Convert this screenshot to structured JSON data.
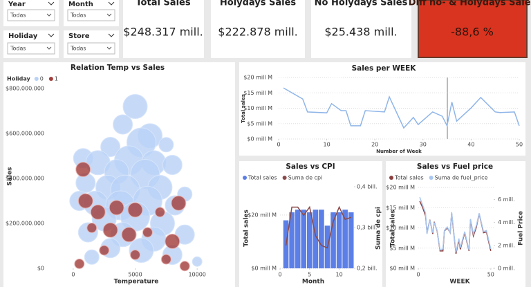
{
  "slicers": [
    {
      "label": "Year",
      "value": "Todas"
    },
    {
      "label": "Month",
      "value": "Todas"
    },
    {
      "label": "Holiday",
      "value": "Todas"
    },
    {
      "label": "Store",
      "value": "Todas"
    }
  ],
  "cards": [
    {
      "title": "Total Sales",
      "value": "$248.317 mill."
    },
    {
      "title": "Holydays Sales",
      "value": "$222.878 mill."
    },
    {
      "title": "No Holydays Sales",
      "value": "$25.438 mill."
    },
    {
      "title": "Diff no- & Holydays Sales",
      "value": "-88,6 %"
    }
  ],
  "chart_data": [
    {
      "type": "scatter",
      "title": "Relation Temp vs Sales",
      "legend_title": "Holiday",
      "x_label": "Temperature",
      "y_label": "Sales",
      "grid": false,
      "xlim": [
        -2000,
        12500
      ],
      "xticks": [
        0,
        5000,
        10000
      ],
      "ylim": [
        0,
        800000000
      ],
      "yticks": [
        {
          "value": 0,
          "label": "$0"
        },
        {
          "value": 200000000,
          "label": "$200.000.000"
        },
        {
          "value": 400000000,
          "label": "$400.000.000"
        },
        {
          "value": 600000000,
          "label": "$600.000.000"
        },
        {
          "value": 800000000,
          "label": "$800.000.000"
        }
      ],
      "series": [
        {
          "name": "0",
          "color": "#b9d2f6",
          "x": [
            5000,
            4000,
            6200,
            5500,
            3000,
            7500,
            800,
            2000,
            4500,
            6500,
            8000,
            3500,
            5800,
            1000,
            2800,
            4200,
            7000,
            9000,
            500,
            1800,
            3800,
            6000,
            8200,
            2500,
            5000,
            7200,
            1200,
            4000,
            6500,
            9000,
            3000,
            5500,
            8000,
            10000,
            1500
          ],
          "values": [
            720000000,
            640000000,
            590000000,
            560000000,
            540000000,
            550000000,
            490000000,
            470000000,
            480000000,
            470000000,
            460000000,
            430000000,
            420000000,
            380000000,
            360000000,
            350000000,
            360000000,
            330000000,
            300000000,
            290000000,
            280000000,
            300000000,
            280000000,
            220000000,
            230000000,
            200000000,
            160000000,
            150000000,
            130000000,
            150000000,
            90000000,
            80000000,
            60000000,
            30000000,
            50000000
          ],
          "sizes": [
            5,
            4,
            5,
            6,
            4,
            3,
            4,
            5,
            6,
            5,
            4,
            5,
            6,
            4,
            5,
            6,
            5,
            3,
            4,
            5,
            6,
            6,
            4,
            5,
            6,
            5,
            4,
            5,
            5,
            4,
            4,
            5,
            4,
            2,
            3
          ]
        },
        {
          "name": "1",
          "color": "#a23f3d",
          "x": [
            800,
            1000,
            2000,
            3500,
            5000,
            7000,
            8500,
            1500,
            3000,
            4500,
            6000,
            8000,
            2500,
            5000,
            7500,
            500,
            9000
          ],
          "values": [
            440000000,
            300000000,
            250000000,
            270000000,
            260000000,
            250000000,
            290000000,
            180000000,
            170000000,
            150000000,
            160000000,
            120000000,
            80000000,
            60000000,
            40000000,
            20000000,
            10000000
          ],
          "sizes": [
            3,
            3,
            3,
            3,
            3,
            2,
            3,
            2,
            3,
            3,
            2,
            3,
            2,
            2,
            2,
            2,
            2
          ]
        }
      ]
    },
    {
      "type": "line",
      "title": "Sales per WEEK",
      "x_label": "Number of Week",
      "y_label": "Total sales",
      "grid": true,
      "xlim": [
        0,
        50
      ],
      "xticks": [
        0,
        10,
        20,
        30,
        40,
        50
      ],
      "ylim": [
        0,
        20
      ],
      "yticks": [
        {
          "value": 0,
          "label": "$0 mill M"
        },
        {
          "value": 5,
          "label": "$5 mill M"
        },
        {
          "value": 10,
          "label": "$10 mill M"
        },
        {
          "value": 15,
          "label": "$15 mill M"
        },
        {
          "value": 20,
          "label": "$20 mill M"
        }
      ],
      "x": [
        1,
        5,
        6,
        10,
        11,
        13,
        14,
        15,
        17,
        18,
        22,
        23,
        26,
        28,
        29,
        32,
        34,
        35,
        36,
        37,
        40,
        42,
        45,
        46,
        49,
        50
      ],
      "series": [
        {
          "name": "Total sales",
          "color": "#8fb5e8",
          "values": [
            16.6,
            13,
            8.8,
            8.5,
            11.5,
            9.2,
            9.2,
            4.3,
            4.3,
            9.2,
            8.8,
            13.7,
            3.6,
            7,
            4.7,
            8.8,
            7.4,
            4.3,
            12,
            5.8,
            10.1,
            13.5,
            8.8,
            8.6,
            8.8,
            4.3
          ]
        }
      ]
    },
    {
      "type": "bar",
      "title": "Sales vs CPI",
      "x_label": "Month",
      "y_label": "Total sales",
      "y2_label": "Suma de cpi",
      "grid": true,
      "xlim": [
        0,
        12.5
      ],
      "xticks": [
        0,
        5,
        10
      ],
      "ylim": [
        0,
        30.6
      ],
      "yticks": [
        {
          "value": 0,
          "label": "$0 mill M"
        },
        {
          "value": 20,
          "label": "$20 mill M"
        }
      ],
      "y2lim": [
        0.2,
        0.4
      ],
      "y2ticks": [
        {
          "value": 0.2,
          "label": "0,2 bill."
        },
        {
          "value": 0.3,
          "label": "0,3 bill."
        },
        {
          "value": 0.4,
          "label": "0,4 bill."
        }
      ],
      "x": [
        1,
        2,
        3,
        4,
        5,
        6,
        7,
        8,
        9,
        10,
        11,
        12
      ],
      "series": [
        {
          "name": "Total sales",
          "color": "#5b7fe6",
          "values": [
            18,
            21,
            22,
            22,
            21,
            22,
            22,
            16,
            21,
            21,
            22,
            21
          ]
        },
        {
          "name": "Suma de cpi",
          "color": "#8b4a4a",
          "type": "line",
          "axis": "y2",
          "values": [
            0.256,
            0.35,
            0.35,
            0.33,
            0.35,
            0.28,
            0.256,
            0.25,
            0.315,
            0.35,
            0.32,
            0.325
          ]
        }
      ]
    },
    {
      "type": "line",
      "title": "Sales vs Fuel price",
      "x_label": "WEEK",
      "y_label": "Total sales",
      "y2_label": "Fuel Price",
      "grid": true,
      "xlim": [
        0,
        52
      ],
      "xticks": [
        0,
        50
      ],
      "ylim": [
        0,
        20
      ],
      "yticks": [
        {
          "value": 0,
          "label": "$0 mill M"
        },
        {
          "value": 5,
          "label": "$5 mill M"
        },
        {
          "value": 10,
          "label": "$10 mill M"
        },
        {
          "value": 15,
          "label": "$15 mill M"
        },
        {
          "value": 20,
          "label": "$20 mill M"
        }
      ],
      "y2lim": [
        0,
        7.05
      ],
      "y2ticks": [
        {
          "value": 0,
          "label": "0 mill."
        },
        {
          "value": 2,
          "label": "2 mill."
        },
        {
          "value": 4,
          "label": "4 mill."
        },
        {
          "value": 6,
          "label": "6 mill."
        }
      ],
      "x": [
        1,
        3,
        5,
        6,
        8,
        10,
        11,
        13,
        15,
        17,
        18,
        20,
        22,
        23,
        26,
        28,
        29,
        32,
        35,
        36,
        38,
        40,
        42,
        45,
        47,
        50
      ],
      "series": [
        {
          "name": "Total sales",
          "color": "#8b3f3f",
          "values": [
            16.6,
            15,
            13,
            8.8,
            12,
            8.5,
            11.5,
            9.2,
            4.3,
            4.3,
            9.2,
            10,
            8.8,
            13.7,
            3.6,
            7,
            4.7,
            8.8,
            4.3,
            12,
            8,
            10.1,
            13.5,
            8.8,
            9,
            4.3
          ]
        },
        {
          "name": "Suma de fuel_price",
          "color": "#a9c6f0",
          "axis": "y2",
          "values": [
            6.2,
            5.5,
            4.8,
            3,
            4.2,
            3.1,
            4,
            3.3,
            1.6,
            1.7,
            3.3,
            3.6,
            3.1,
            4.9,
            1.4,
            2.6,
            1.8,
            3.2,
            1.6,
            4.3,
            3,
            3.7,
            4.8,
            3.2,
            3.3,
            1.7
          ]
        }
      ]
    }
  ]
}
